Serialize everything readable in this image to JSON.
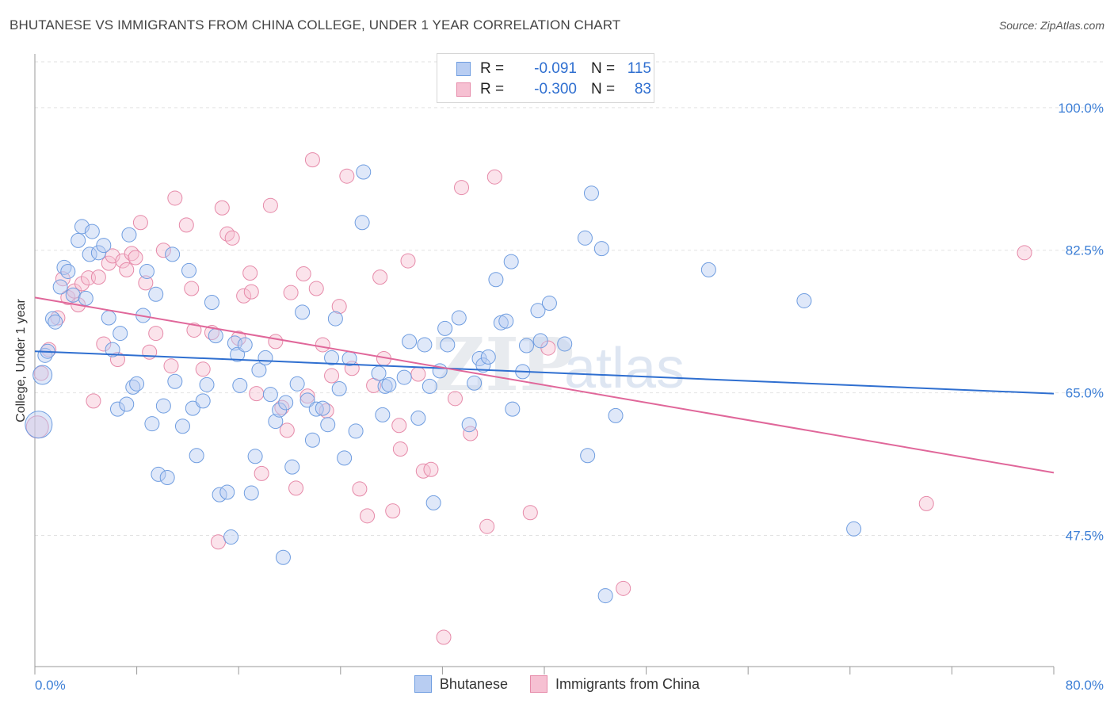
{
  "title": "BHUTANESE VS IMMIGRANTS FROM CHINA COLLEGE, UNDER 1 YEAR CORRELATION CHART",
  "source": "Source: ZipAtlas.com",
  "watermark": "ZIPatlas",
  "legend": {
    "rows": [
      {
        "r_label": "R =",
        "r_value": "-0.091",
        "n_label": "N =",
        "n_value": "115",
        "fill": "#b8cdf2",
        "stroke": "#6f9de0"
      },
      {
        "r_label": "R =",
        "r_value": "-0.300",
        "n_label": "N =",
        "n_value": "83",
        "fill": "#f6c0d2",
        "stroke": "#e68aa9"
      }
    ]
  },
  "bottom_legend": [
    {
      "label": "Bhutanese",
      "fill": "#b8cdf2",
      "stroke": "#6f9de0"
    },
    {
      "label": "Immigrants from China",
      "fill": "#f6c0d2",
      "stroke": "#e68aa9"
    }
  ],
  "chart_data": {
    "type": "scatter",
    "title": "BHUTANESE VS IMMIGRANTS FROM CHINA COLLEGE, UNDER 1 YEAR CORRELATION CHART",
    "xlabel": "",
    "ylabel": "College, Under 1 year",
    "xlim": [
      0,
      80
    ],
    "ylim": [
      31.4,
      106.6
    ],
    "x_tick_labels": [
      "0.0%",
      "80.0%"
    ],
    "y_ticks": [
      47.5,
      65.0,
      82.5,
      100.0
    ],
    "y_tick_labels": [
      "47.5%",
      "65.0%",
      "82.5%",
      "100.0%"
    ],
    "grid": "horizontal dashed",
    "colors": {
      "bhutanese": "#6f9de0",
      "china": "#e68aa9",
      "bhutanese_line": "#2f6fd0",
      "china_line": "#e0679a",
      "tick_label": "#3d7fd6"
    },
    "series": [
      {
        "name": "Bhutanese",
        "trend": {
          "x0": 0,
          "y0": 70.1,
          "x1": 80,
          "y1": 64.9
        },
        "points": [
          [
            0.3,
            61.1
          ],
          [
            0.6,
            67.2
          ],
          [
            0.8,
            69.6
          ],
          [
            1.0,
            70.1
          ],
          [
            1.4,
            74.1
          ],
          [
            1.6,
            73.7
          ],
          [
            2.0,
            78.0
          ],
          [
            2.3,
            80.4
          ],
          [
            2.6,
            79.9
          ],
          [
            3.0,
            77.0
          ],
          [
            3.4,
            83.7
          ],
          [
            3.7,
            85.4
          ],
          [
            4.0,
            76.6
          ],
          [
            4.3,
            82.0
          ],
          [
            4.5,
            84.8
          ],
          [
            5.0,
            82.2
          ],
          [
            5.4,
            83.1
          ],
          [
            5.8,
            74.2
          ],
          [
            6.1,
            70.3
          ],
          [
            6.5,
            63.0
          ],
          [
            6.7,
            72.3
          ],
          [
            7.2,
            63.6
          ],
          [
            7.4,
            84.4
          ],
          [
            7.7,
            65.7
          ],
          [
            8.0,
            66.1
          ],
          [
            8.5,
            74.5
          ],
          [
            8.8,
            79.9
          ],
          [
            9.2,
            61.2
          ],
          [
            9.5,
            77.1
          ],
          [
            9.7,
            55.0
          ],
          [
            10.1,
            63.4
          ],
          [
            10.4,
            54.6
          ],
          [
            10.8,
            82.0
          ],
          [
            11.0,
            66.4
          ],
          [
            11.6,
            60.9
          ],
          [
            12.1,
            80.0
          ],
          [
            12.4,
            63.1
          ],
          [
            12.7,
            57.3
          ],
          [
            13.2,
            64.0
          ],
          [
            13.5,
            66.0
          ],
          [
            13.9,
            76.1
          ],
          [
            14.2,
            72.0
          ],
          [
            14.5,
            52.5
          ],
          [
            15.1,
            52.8
          ],
          [
            15.4,
            47.3
          ],
          [
            15.7,
            71.1
          ],
          [
            15.9,
            69.7
          ],
          [
            16.1,
            65.9
          ],
          [
            16.5,
            70.9
          ],
          [
            17.0,
            52.7
          ],
          [
            17.3,
            57.2
          ],
          [
            17.6,
            67.8
          ],
          [
            18.1,
            69.3
          ],
          [
            18.5,
            64.8
          ],
          [
            18.9,
            61.5
          ],
          [
            19.2,
            62.9
          ],
          [
            19.5,
            44.8
          ],
          [
            19.7,
            63.8
          ],
          [
            20.2,
            55.9
          ],
          [
            20.6,
            66.1
          ],
          [
            21.0,
            74.9
          ],
          [
            21.4,
            64.1
          ],
          [
            21.8,
            59.2
          ],
          [
            22.1,
            63.0
          ],
          [
            22.6,
            63.1
          ],
          [
            23.0,
            61.1
          ],
          [
            23.3,
            69.3
          ],
          [
            23.6,
            74.1
          ],
          [
            23.9,
            65.5
          ],
          [
            24.3,
            57.0
          ],
          [
            24.7,
            69.2
          ],
          [
            25.2,
            60.3
          ],
          [
            25.7,
            85.9
          ],
          [
            25.8,
            92.1
          ],
          [
            27.0,
            67.4
          ],
          [
            27.3,
            62.3
          ],
          [
            27.5,
            65.8
          ],
          [
            27.8,
            66.0
          ],
          [
            29.0,
            66.9
          ],
          [
            29.4,
            71.3
          ],
          [
            30.1,
            61.9
          ],
          [
            30.6,
            70.9
          ],
          [
            31.0,
            65.8
          ],
          [
            31.3,
            51.5
          ],
          [
            31.8,
            67.7
          ],
          [
            32.2,
            72.9
          ],
          [
            32.4,
            70.9
          ],
          [
            33.3,
            74.2
          ],
          [
            34.1,
            61.1
          ],
          [
            34.5,
            66.2
          ],
          [
            34.9,
            69.2
          ],
          [
            35.2,
            68.4
          ],
          [
            35.6,
            69.4
          ],
          [
            36.2,
            78.9
          ],
          [
            36.6,
            73.6
          ],
          [
            37.0,
            73.8
          ],
          [
            37.4,
            81.1
          ],
          [
            37.5,
            63.0
          ],
          [
            38.3,
            67.6
          ],
          [
            38.6,
            70.8
          ],
          [
            39.5,
            75.1
          ],
          [
            39.7,
            71.4
          ],
          [
            40.4,
            76.0
          ],
          [
            41.6,
            71.0
          ],
          [
            43.2,
            84.0
          ],
          [
            43.4,
            57.3
          ],
          [
            43.7,
            89.5
          ],
          [
            44.5,
            82.7
          ],
          [
            44.8,
            40.1
          ],
          [
            45.6,
            62.2
          ],
          [
            52.9,
            80.1
          ],
          [
            60.4,
            76.3
          ],
          [
            64.3,
            48.3
          ]
        ],
        "sizes": {
          "0.3,61.1": "large",
          "0.6,67.2": "medium"
        }
      },
      {
        "name": "Immigrants from China",
        "trend": {
          "x0": 0,
          "y0": 76.7,
          "x1": 80,
          "y1": 55.2
        },
        "points": [
          [
            0.2,
            60.8
          ],
          [
            0.5,
            67.4
          ],
          [
            1.1,
            70.3
          ],
          [
            1.8,
            74.2
          ],
          [
            2.2,
            79.0
          ],
          [
            2.6,
            76.7
          ],
          [
            3.1,
            77.5
          ],
          [
            3.4,
            75.8
          ],
          [
            3.7,
            78.4
          ],
          [
            4.2,
            79.1
          ],
          [
            4.6,
            64.0
          ],
          [
            5.0,
            79.2
          ],
          [
            5.4,
            71.0
          ],
          [
            5.8,
            80.9
          ],
          [
            6.1,
            81.8
          ],
          [
            6.5,
            69.1
          ],
          [
            6.9,
            81.2
          ],
          [
            7.2,
            80.1
          ],
          [
            7.6,
            82.1
          ],
          [
            7.9,
            81.6
          ],
          [
            8.3,
            85.9
          ],
          [
            8.7,
            78.5
          ],
          [
            9.0,
            70.0
          ],
          [
            9.5,
            72.3
          ],
          [
            10.1,
            82.5
          ],
          [
            10.7,
            68.3
          ],
          [
            11.0,
            88.9
          ],
          [
            11.9,
            85.6
          ],
          [
            12.3,
            77.8
          ],
          [
            12.5,
            72.7
          ],
          [
            13.2,
            67.9
          ],
          [
            13.9,
            72.4
          ],
          [
            14.4,
            46.7
          ],
          [
            14.7,
            87.7
          ],
          [
            15.1,
            84.5
          ],
          [
            15.5,
            84.0
          ],
          [
            16.0,
            71.7
          ],
          [
            16.4,
            76.9
          ],
          [
            16.9,
            79.7
          ],
          [
            17.0,
            77.4
          ],
          [
            17.4,
            64.9
          ],
          [
            17.8,
            55.1
          ],
          [
            18.5,
            88.0
          ],
          [
            18.9,
            71.3
          ],
          [
            19.4,
            63.2
          ],
          [
            19.8,
            60.4
          ],
          [
            20.1,
            77.3
          ],
          [
            20.5,
            53.3
          ],
          [
            21.1,
            79.6
          ],
          [
            21.4,
            64.6
          ],
          [
            21.8,
            93.6
          ],
          [
            22.1,
            77.8
          ],
          [
            22.6,
            70.9
          ],
          [
            22.9,
            62.8
          ],
          [
            23.3,
            67.1
          ],
          [
            23.9,
            75.6
          ],
          [
            24.5,
            91.6
          ],
          [
            24.9,
            68.0
          ],
          [
            25.5,
            53.2
          ],
          [
            26.1,
            49.9
          ],
          [
            26.6,
            65.9
          ],
          [
            27.1,
            79.2
          ],
          [
            27.4,
            69.2
          ],
          [
            28.1,
            50.5
          ],
          [
            28.6,
            61.0
          ],
          [
            28.7,
            58.1
          ],
          [
            29.3,
            81.2
          ],
          [
            30.1,
            67.3
          ],
          [
            30.5,
            55.4
          ],
          [
            31.1,
            55.6
          ],
          [
            32.1,
            35.0
          ],
          [
            33.0,
            64.3
          ],
          [
            33.5,
            90.2
          ],
          [
            34.2,
            60.0
          ],
          [
            35.5,
            48.6
          ],
          [
            36.1,
            91.5
          ],
          [
            38.9,
            50.3
          ],
          [
            40.3,
            70.5
          ],
          [
            46.2,
            41.0
          ],
          [
            70.0,
            51.4
          ],
          [
            77.7,
            82.2
          ]
        ]
      }
    ]
  }
}
